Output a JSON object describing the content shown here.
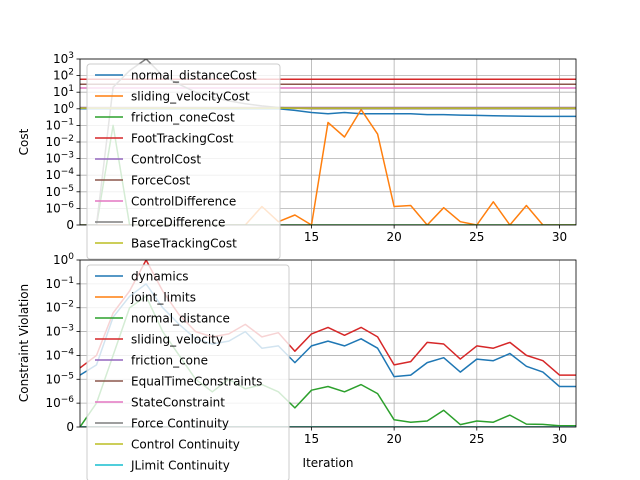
{
  "chart_data": [
    {
      "type": "line",
      "ylabel": "Cost",
      "xlabel": "",
      "yscale": "symlog",
      "xlim": [
        1,
        31
      ],
      "ylim": [
        0,
        1000
      ],
      "grid": true,
      "legend_position": "upper-left",
      "x_ticks": [
        15,
        20,
        25,
        30
      ],
      "y_ticks": [
        {
          "value": 0,
          "label": "0"
        },
        {
          "value": 1e-06,
          "label": "10^-6"
        },
        {
          "value": 1e-05,
          "label": "10^-5"
        },
        {
          "value": 0.0001,
          "label": "10^-4"
        },
        {
          "value": 0.001,
          "label": "10^-3"
        },
        {
          "value": 0.01,
          "label": "10^-2"
        },
        {
          "value": 0.1,
          "label": "10^-1"
        },
        {
          "value": 1,
          "label": "10^0"
        },
        {
          "value": 10,
          "label": "10^1"
        },
        {
          "value": 100,
          "label": "10^2"
        },
        {
          "value": 1000,
          "label": "10^3"
        }
      ],
      "x": [
        1,
        2,
        3,
        4,
        5,
        6,
        7,
        8,
        9,
        10,
        11,
        12,
        13,
        14,
        15,
        16,
        17,
        18,
        19,
        20,
        21,
        22,
        23,
        24,
        25,
        26,
        27,
        28,
        29,
        30,
        31
      ],
      "series": [
        {
          "name": "normal_distanceCost",
          "color": "#1f77b4",
          "values": [
            1,
            1,
            1,
            1,
            1,
            1,
            1,
            1,
            1,
            1,
            1,
            1,
            1,
            0.8,
            0.6,
            0.5,
            0.6,
            0.5,
            0.5,
            0.5,
            0.5,
            0.45,
            0.45,
            0.42,
            0.4,
            0.38,
            0.37,
            0.36,
            0.35,
            0.35,
            0.35
          ]
        },
        {
          "name": "sliding_velocityCost",
          "color": "#ff7f0e",
          "values": [
            0,
            0,
            0,
            0,
            0,
            0,
            0,
            0,
            0,
            0,
            0,
            1.3e-06,
            2e-07,
            6e-07,
            0,
            0.15,
            0.02,
            0.9,
            0.03,
            1.3e-06,
            1.5e-06,
            0,
            1.1e-06,
            2e-07,
            0,
            2.5e-06,
            0,
            1.5e-06,
            0,
            0,
            0
          ]
        },
        {
          "name": "friction_coneCost",
          "color": "#2ca02c",
          "values": [
            0,
            0,
            0.1,
            0,
            0,
            0,
            0,
            0,
            0,
            0,
            0,
            0,
            0,
            0,
            0,
            0,
            0,
            0,
            0,
            0,
            0,
            0,
            0,
            0,
            0,
            0,
            0,
            0,
            0,
            0,
            0
          ]
        },
        {
          "name": "FootTrackingCost",
          "color": "#d62728",
          "values": [
            60,
            60,
            60,
            60,
            60,
            60,
            60,
            60,
            60,
            60,
            60,
            60,
            60,
            60,
            60,
            60,
            60,
            60,
            60,
            60,
            60,
            60,
            60,
            60,
            60,
            60,
            60,
            60,
            60,
            60,
            60
          ]
        },
        {
          "name": "ControlCost",
          "color": "#9467bd",
          "values": [
            1.2,
            1.2,
            1.2,
            1.2,
            1.2,
            1.2,
            1.2,
            1.2,
            1.2,
            1.2,
            1.2,
            1.2,
            1.2,
            1.2,
            1.2,
            1.2,
            1.2,
            1.2,
            1.2,
            1.2,
            1.2,
            1.2,
            1.2,
            1.2,
            1.2,
            1.2,
            1.2,
            1.2,
            1.2,
            1.2,
            1.2
          ]
        },
        {
          "name": "ForceCost",
          "color": "#8c564b",
          "values": [
            30,
            30,
            30,
            30,
            30,
            30,
            30,
            30,
            30,
            30,
            30,
            30,
            30,
            30,
            30,
            30,
            30,
            30,
            30,
            30,
            30,
            30,
            30,
            30,
            30,
            30,
            30,
            30,
            30,
            30,
            30
          ]
        },
        {
          "name": "ControlDifference",
          "color": "#e377c2",
          "values": [
            18,
            18,
            18,
            18,
            18,
            18,
            18,
            18,
            18,
            18,
            18,
            18,
            18,
            18,
            18,
            18,
            18,
            18,
            18,
            18,
            18,
            18,
            18,
            18,
            18,
            18,
            18,
            18,
            18,
            18,
            18
          ]
        },
        {
          "name": "ForceDifference",
          "color": "#7f7f7f",
          "values": [
            0,
            0,
            20,
            200,
            1200,
            100,
            30,
            10,
            5,
            3,
            2,
            1.5,
            1.2,
            1.1,
            1,
            1,
            1,
            1,
            1,
            1,
            1,
            1,
            1,
            1,
            1,
            1,
            1,
            1,
            1,
            1,
            1
          ]
        },
        {
          "name": "BaseTrackingCost",
          "color": "#bcbd22",
          "values": [
            1.1,
            1.1,
            1.1,
            1.1,
            1.1,
            1.1,
            1.1,
            1.1,
            1.1,
            1.1,
            1.1,
            1.1,
            1.1,
            1.1,
            1.1,
            1.1,
            1.1,
            1.1,
            1.1,
            1.1,
            1.1,
            1.1,
            1.1,
            1.1,
            1.1,
            1.1,
            1.1,
            1.1,
            1.1,
            1.1,
            1.1
          ]
        }
      ]
    },
    {
      "type": "line",
      "ylabel": "Constraint Violation",
      "xlabel": "Iteration",
      "yscale": "symlog",
      "xlim": [
        1,
        31
      ],
      "ylim": [
        0,
        1
      ],
      "grid": true,
      "legend_position": "upper-left",
      "x_ticks": [
        15,
        20,
        25,
        30
      ],
      "y_ticks": [
        {
          "value": 0,
          "label": "0"
        },
        {
          "value": 1e-06,
          "label": "10^-6"
        },
        {
          "value": 1e-05,
          "label": "10^-5"
        },
        {
          "value": 0.0001,
          "label": "10^-4"
        },
        {
          "value": 0.001,
          "label": "10^-3"
        },
        {
          "value": 0.01,
          "label": "10^-2"
        },
        {
          "value": 0.1,
          "label": "10^-1"
        },
        {
          "value": 1,
          "label": "10^0"
        }
      ],
      "x": [
        1,
        2,
        3,
        4,
        5,
        6,
        7,
        8,
        9,
        10,
        11,
        12,
        13,
        14,
        15,
        16,
        17,
        18,
        19,
        20,
        21,
        22,
        23,
        24,
        25,
        26,
        27,
        28,
        29,
        30,
        31
      ],
      "series": [
        {
          "name": "dynamics",
          "color": "#1f77b4",
          "values": [
            1.5e-05,
            4e-05,
            0.004,
            0.03,
            0.1,
            0.01,
            0.002,
            0.0005,
            0.0003,
            0.0004,
            0.001,
            0.0002,
            0.00025,
            5e-05,
            0.00025,
            0.0004,
            0.00025,
            0.0005,
            0.0002,
            1.3e-05,
            1.5e-05,
            5e-05,
            8e-05,
            2e-05,
            7e-05,
            6e-05,
            0.00012,
            3.5e-05,
            2e-05,
            5e-06,
            5e-06
          ]
        },
        {
          "name": "joint_limits",
          "color": "#ff7f0e",
          "values": [
            0,
            0,
            0,
            0,
            0,
            0,
            0,
            0,
            0,
            0,
            0,
            0,
            0,
            0,
            0,
            0,
            0,
            0,
            0,
            0,
            0,
            0,
            0,
            0,
            0,
            0,
            0,
            0,
            0,
            0,
            0
          ]
        },
        {
          "name": "normal_distance",
          "color": "#2ca02c",
          "values": [
            0,
            1e-06,
            0.0001,
            0.01,
            0.03,
            0.001,
            0.0001,
            1e-05,
            3e-06,
            1e-05,
            4e-06,
            6e-06,
            3e-06,
            8e-07,
            3.5e-06,
            5e-06,
            3e-06,
            6e-06,
            2.5e-06,
            3e-07,
            2e-07,
            2.5e-07,
            7e-07,
            1e-07,
            2.5e-07,
            2e-07,
            5e-07,
            1.2e-07,
            1.1e-07,
            5e-08,
            5e-08
          ]
        },
        {
          "name": "sliding_velocity",
          "color": "#d62728",
          "values": [
            3e-05,
            0.0001,
            0.006,
            0.05,
            1,
            0.05,
            0.005,
            0.001,
            0.0006,
            0.0008,
            0.002,
            0.0006,
            0.0009,
            0.00015,
            0.0008,
            0.0015,
            0.0007,
            0.0015,
            0.0006,
            4e-05,
            5.5e-05,
            0.00035,
            0.0003,
            7e-05,
            0.00025,
            0.0002,
            0.00035,
            0.0001,
            6e-05,
            1.5e-05,
            1.5e-05
          ]
        },
        {
          "name": "friction_cone",
          "color": "#9467bd",
          "values": [
            0,
            0,
            0,
            0,
            0,
            0,
            0,
            0,
            0,
            0,
            0,
            0,
            0,
            0,
            0,
            0,
            0,
            0,
            0,
            0,
            0,
            0,
            0,
            0,
            0,
            0,
            0,
            0,
            0,
            0,
            0
          ]
        },
        {
          "name": "EqualTimeConstraints",
          "color": "#8c564b",
          "values": [
            0,
            0,
            0,
            0,
            0,
            0,
            0,
            0,
            0,
            0,
            0,
            0,
            0,
            0,
            0,
            0,
            0,
            0,
            0,
            0,
            0,
            0,
            0,
            0,
            0,
            0,
            0,
            0,
            0,
            0,
            0
          ]
        },
        {
          "name": "StateConstraint",
          "color": "#e377c2",
          "values": [
            0,
            0,
            0,
            0,
            0,
            0,
            0,
            0,
            0,
            0,
            0,
            0,
            0,
            0,
            0,
            0,
            0,
            0,
            0,
            0,
            0,
            0,
            0,
            0,
            0,
            0,
            0,
            0,
            0,
            0,
            0
          ]
        },
        {
          "name": "Force Continuity",
          "color": "#7f7f7f",
          "values": [
            0,
            0,
            0,
            0,
            0,
            0,
            0,
            0,
            0,
            0,
            0,
            0,
            0,
            0,
            0,
            0,
            0,
            0,
            0,
            0,
            0,
            0,
            0,
            0,
            0,
            0,
            0,
            0,
            0,
            0,
            0
          ]
        },
        {
          "name": "Control Continuity",
          "color": "#bcbd22",
          "values": [
            0,
            0,
            0,
            0,
            0,
            0,
            0,
            0,
            0,
            0,
            0,
            0,
            0,
            0,
            0,
            0,
            0,
            0,
            0,
            0,
            0,
            0,
            0,
            0,
            0,
            0,
            0,
            0,
            0,
            0,
            0
          ]
        },
        {
          "name": "JLimit Continuity",
          "color": "#17becf",
          "values": [
            0,
            0,
            0,
            0,
            0,
            0,
            0,
            0,
            0,
            0,
            0,
            0,
            0,
            0,
            0,
            0,
            0,
            0,
            0,
            0,
            0,
            0,
            0,
            0,
            0,
            0,
            0,
            0,
            0,
            0,
            0
          ]
        }
      ]
    }
  ]
}
